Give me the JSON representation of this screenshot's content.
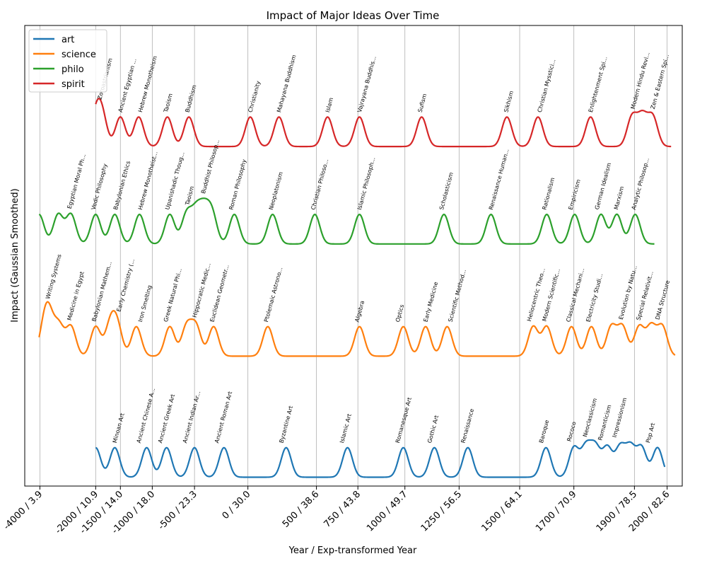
{
  "chart_data": {
    "type": "line",
    "title": "Impact of Major Ideas Over Time",
    "xlabel": "Year / Exp-transformed Year",
    "ylabel": "Impact (Gaussian Smoothed)",
    "xlim": [
      2.0,
      84.5
    ],
    "ylim": [
      -0.3,
      15.3
    ],
    "grid": "vertical",
    "legend": {
      "position": "top-left"
    },
    "x_ticks": [
      {
        "x": 3.9,
        "label": "-4000 / 3.9"
      },
      {
        "x": 10.9,
        "label": "-2000 / 10.9"
      },
      {
        "x": 14.0,
        "label": "-1500 / 14.0"
      },
      {
        "x": 18.0,
        "label": "-1000 / 18.0"
      },
      {
        "x": 23.3,
        "label": "-500 / 23.3"
      },
      {
        "x": 30.0,
        "label": "0 / 30.0"
      },
      {
        "x": 38.6,
        "label": "500 / 38.6"
      },
      {
        "x": 43.8,
        "label": "750 / 43.8"
      },
      {
        "x": 49.7,
        "label": "1000 / 49.7"
      },
      {
        "x": 56.5,
        "label": "1250 / 56.5"
      },
      {
        "x": 64.1,
        "label": "1500 / 64.1"
      },
      {
        "x": 70.9,
        "label": "1700 / 70.9"
      },
      {
        "x": 78.5,
        "label": "1900 / 78.5"
      },
      {
        "x": 82.6,
        "label": "2000 / 82.6"
      }
    ],
    "series": [
      {
        "name": "art",
        "color": "#1f77b4",
        "offset": 0,
        "x_range": [
          10.9,
          82.3
        ],
        "events": [
          {
            "x": 10.9,
            "label": "Minoan Art",
            "label_x": 13.5
          },
          {
            "x": 13.3,
            "label": "",
            "label_x": null
          },
          {
            "x": 17.3,
            "label": "Ancient Chinese A...",
            "label_x": 16.5
          },
          {
            "x": 19.8,
            "label": "Ancient Greek Art",
            "label_x": 19.2
          },
          {
            "x": 23.3,
            "label": "Ancient Indian Ar...",
            "label_x": 22.3
          },
          {
            "x": 27.0,
            "label": "Ancient Roman Art",
            "label_x": 26.3
          },
          {
            "x": 34.8,
            "label": "Byzantine Art",
            "label_x": 34.4
          },
          {
            "x": 42.5,
            "label": "Islamic Art",
            "label_x": 42.0
          },
          {
            "x": 49.5,
            "label": "Romanesque Art",
            "label_x": 49.0
          },
          {
            "x": 53.4,
            "label": "Gothic Art",
            "label_x": 53.0
          },
          {
            "x": 57.6,
            "label": "Renaissance",
            "label_x": 57.2
          },
          {
            "x": 67.4,
            "label": "Baroque",
            "label_x": 67.0
          },
          {
            "x": 70.9,
            "label": "Rococo",
            "label_x": 70.5
          },
          {
            "x": 72.4,
            "label": "",
            "label_x": null
          },
          {
            "x": 73.6,
            "label": "Neoclassicism",
            "label_x": 72.5
          },
          {
            "x": 75.1,
            "label": "Romanticism",
            "label_x": 74.4
          },
          {
            "x": 76.7,
            "label": "",
            "label_x": null
          },
          {
            "x": 78.0,
            "label": "Impressionism",
            "label_x": 76.2
          },
          {
            "x": 79.4,
            "label": "",
            "label_x": null
          },
          {
            "x": 81.4,
            "label": "Pop Art",
            "label_x": 80.4
          }
        ]
      },
      {
        "name": "science",
        "color": "#ff7f0e",
        "offset": 4.1,
        "x_range": [
          3.8,
          83.6
        ],
        "events": [
          {
            "x": 4.5,
            "label": "",
            "label_x": null
          },
          {
            "x": 5.1,
            "label": "Writing Systems",
            "label_x": 5.1
          },
          {
            "x": 6.3,
            "label": "",
            "label_x": null
          },
          {
            "x": 7.8,
            "label": "Medicine in Egypt",
            "label_x": 7.8
          },
          {
            "x": 10.9,
            "label": "Babylonian Mathem...",
            "label_x": 10.9
          },
          {
            "x": 12.7,
            "label": "",
            "label_x": null
          },
          {
            "x": 13.6,
            "label": "Early Chemistry (...",
            "label_x": 14.0
          },
          {
            "x": 16.0,
            "label": "Iron Smelting",
            "label_x": 16.7
          },
          {
            "x": 20.2,
            "label": "Greek Natural Phi...",
            "label_x": 19.9
          },
          {
            "x": 22.3,
            "label": "",
            "label_x": null
          },
          {
            "x": 23.5,
            "label": "Hippocratic Medic...",
            "label_x": 23.5
          },
          {
            "x": 25.7,
            "label": "Euclidean Geometr...",
            "label_x": 25.7
          },
          {
            "x": 32.5,
            "label": "Ptolemaic Astrono...",
            "label_x": 32.5
          },
          {
            "x": 44.0,
            "label": "Algebra",
            "label_x": 43.9
          },
          {
            "x": 49.5,
            "label": "Optics",
            "label_x": 49.0
          },
          {
            "x": 52.3,
            "label": "Early Medicine",
            "label_x": 52.5
          },
          {
            "x": 55.0,
            "label": "Scientific Method...",
            "label_x": 55.6
          },
          {
            "x": 65.8,
            "label": "Heliocentric Theo...",
            "label_x": 65.5
          },
          {
            "x": 67.5,
            "label": "Modern Scientific...",
            "label_x": 67.4
          },
          {
            "x": 70.6,
            "label": "Classical Mechani...",
            "label_x": 70.4
          },
          {
            "x": 73.1,
            "label": "Electricity Studi...",
            "label_x": 72.9
          },
          {
            "x": 75.6,
            "label": "",
            "label_x": null
          },
          {
            "x": 77.0,
            "label": "Evolution by Natu...",
            "label_x": 77.0
          },
          {
            "x": 79.1,
            "label": "Special Relativit...",
            "label_x": 79.2
          },
          {
            "x": 80.6,
            "label": "",
            "label_x": null
          },
          {
            "x": 82.0,
            "label": "DNA Structure",
            "label_x": 81.6
          }
        ]
      },
      {
        "name": "philo",
        "color": "#2ca02c",
        "offset": 7.9,
        "x_range": [
          3.8,
          81.0
        ],
        "events": [
          {
            "x": 3.8,
            "label": "",
            "label_x": null
          },
          {
            "x": 6.2,
            "label": "",
            "label_x": null
          },
          {
            "x": 7.8,
            "label": "Egyptian Moral Ph...",
            "label_x": 7.8
          },
          {
            "x": 10.9,
            "label": "Vedic Philosophy",
            "label_x": 10.8
          },
          {
            "x": 13.3,
            "label": "Babylonian Ethics",
            "label_x": 13.6
          },
          {
            "x": 16.4,
            "label": "Hebrew Monotheist...",
            "label_x": 16.7
          },
          {
            "x": 20.2,
            "label": "Upanishadic Thoug...",
            "label_x": 20.1
          },
          {
            "x": 22.3,
            "label": "Taoism",
            "label_x": 22.6
          },
          {
            "x": 23.5,
            "label": "",
            "label_x": null
          },
          {
            "x": 24.5,
            "label": "Buddhist Philosop...",
            "label_x": 24.6
          },
          {
            "x": 25.5,
            "label": "",
            "label_x": null
          },
          {
            "x": 28.3,
            "label": "Roman Philosophy",
            "label_x": 28.1
          },
          {
            "x": 33.1,
            "label": "Neoplatonism",
            "label_x": 33.1
          },
          {
            "x": 38.4,
            "label": "Christian Philoso...",
            "label_x": 38.4
          },
          {
            "x": 44.0,
            "label": "Islamic Philosoph...",
            "label_x": 44.2
          },
          {
            "x": 54.6,
            "label": "Scholasticism",
            "label_x": 54.5
          },
          {
            "x": 60.5,
            "label": "Renaissance Human...",
            "label_x": 60.7
          },
          {
            "x": 67.5,
            "label": "Rationalism",
            "label_x": 67.4
          },
          {
            "x": 71.0,
            "label": "Empiricism",
            "label_x": 70.7
          },
          {
            "x": 74.3,
            "label": "German Idealism",
            "label_x": 74.0
          },
          {
            "x": 76.3,
            "label": "Marxism",
            "label_x": 76.4
          },
          {
            "x": 78.6,
            "label": "Analytic Philosop...",
            "label_x": 78.6
          }
        ]
      },
      {
        "name": "spirit",
        "color": "#d62728",
        "offset": 11.2,
        "x_range": [
          10.9,
          83.1
        ],
        "events": [
          {
            "x": 10.9,
            "label": "",
            "label_x": null
          },
          {
            "x": 11.7,
            "label": "Zoroastrianism",
            "label_x": 11.6
          },
          {
            "x": 14.0,
            "label": "Ancient Egyptian ...",
            "label_x": 14.2
          },
          {
            "x": 16.3,
            "label": "Hebrew Monotheism",
            "label_x": 16.7
          },
          {
            "x": 19.9,
            "label": "Taoism",
            "label_x": 19.9
          },
          {
            "x": 22.6,
            "label": "Buddhism",
            "label_x": 22.6
          },
          {
            "x": 30.3,
            "label": "Christianity",
            "label_x": 30.5
          },
          {
            "x": 33.9,
            "label": "Mahayana Buddhism",
            "label_x": 34.1
          },
          {
            "x": 40.0,
            "label": "Islam",
            "label_x": 40.2
          },
          {
            "x": 44.0,
            "label": "Vajrayana Buddhis...",
            "label_x": 44.2
          },
          {
            "x": 51.8,
            "label": "Sufism",
            "label_x": 51.8
          },
          {
            "x": 62.5,
            "label": "Sikhism",
            "label_x": 62.6
          },
          {
            "x": 66.4,
            "label": "Christian Mysstici...",
            "label_x": 66.8
          },
          {
            "x": 73.0,
            "label": "Enlightenment Spi...",
            "label_x": 73.2
          },
          {
            "x": 78.2,
            "label": "Modern Hindu Revi...",
            "label_x": 78.5
          },
          {
            "x": 79.5,
            "label": "",
            "label_x": null
          },
          {
            "x": 80.8,
            "label": "Zen & Eastern Spi...",
            "label_x": 81.0
          }
        ]
      }
    ]
  }
}
